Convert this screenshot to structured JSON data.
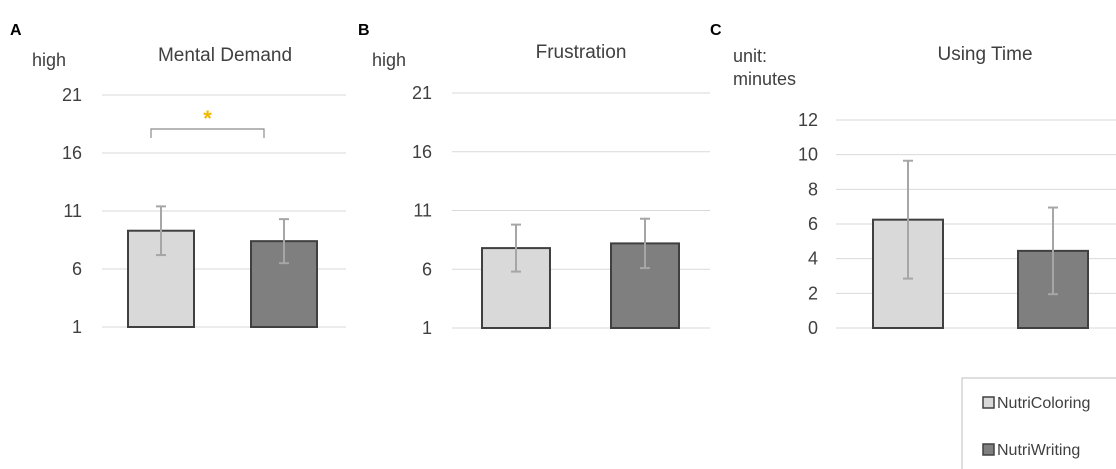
{
  "colors": {
    "NutriColoring": "#d9d9d9",
    "NutriWriting": "#7f7f7f"
  },
  "legend": {
    "placement": "bottom-right",
    "entries": [
      "NutriColoring",
      "NutriWriting"
    ]
  },
  "chart_data": [
    {
      "panel": "A",
      "type": "bar",
      "title": "Mental Demand",
      "ylabel": "high",
      "ylim": [
        1,
        21
      ],
      "yticks": [
        1,
        6,
        11,
        16,
        21
      ],
      "grid": true,
      "categories": [
        "NutriColoring",
        "NutriWriting"
      ],
      "values": [
        9.3,
        8.4
      ],
      "errors": [
        2.1,
        1.9
      ],
      "significance": {
        "pair": [
          0,
          1
        ],
        "marker": "*"
      }
    },
    {
      "panel": "B",
      "type": "bar",
      "title": "Frustration",
      "ylabel": "high",
      "ylim": [
        1,
        21
      ],
      "yticks": [
        1,
        6,
        11,
        16,
        21
      ],
      "grid": true,
      "categories": [
        "NutriColoring",
        "NutriWriting"
      ],
      "values": [
        7.8,
        8.2
      ],
      "errors": [
        2.0,
        2.1
      ]
    },
    {
      "panel": "C",
      "type": "bar",
      "title": "Using Time",
      "ylabel": "unit: minutes",
      "ylabel_lines": [
        "unit:",
        "minutes"
      ],
      "ylim": [
        0,
        12
      ],
      "yticks": [
        0,
        2,
        4,
        6,
        8,
        10,
        12
      ],
      "grid": true,
      "categories": [
        "NutriColoring",
        "NutriWriting"
      ],
      "values": [
        6.25,
        4.45
      ],
      "errors": [
        3.4,
        2.5
      ]
    }
  ]
}
